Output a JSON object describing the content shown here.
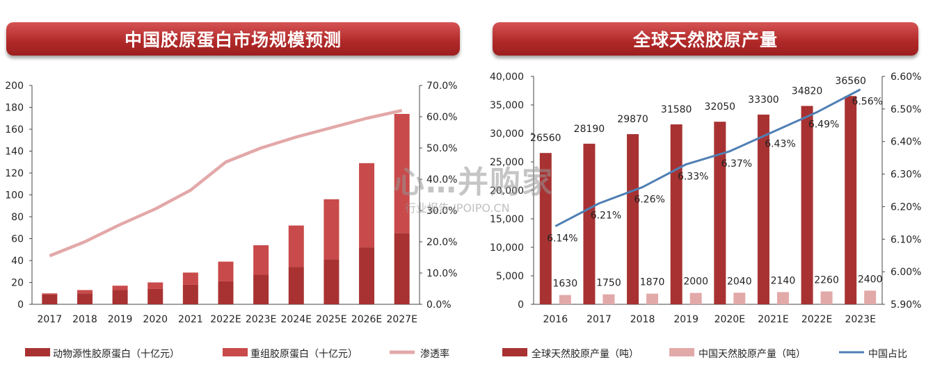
{
  "left": {
    "title": "中国胶原蛋白市场规模预测",
    "chart_data": {
      "type": "bar",
      "stacked": true,
      "categories": [
        "2017",
        "2018",
        "2019",
        "2020",
        "2021",
        "2022E",
        "2023E",
        "2024E",
        "2025E",
        "2026E",
        "2027E"
      ],
      "series": [
        {
          "name": "动物源性胶原蛋白（十亿元）",
          "type": "bar",
          "axis": "left",
          "color": "#a83232",
          "values": [
            9,
            10,
            13,
            14,
            18,
            21,
            27,
            34,
            41,
            52,
            65
          ]
        },
        {
          "name": "重组胶原蛋白（十亿元）",
          "type": "bar",
          "axis": "left",
          "color": "#c94a4a",
          "values": [
            1,
            3,
            4,
            6,
            11,
            18,
            27,
            38,
            55,
            77,
            109
          ]
        },
        {
          "name": "渗透率",
          "type": "line",
          "axis": "right",
          "color": "#e3a8a8",
          "values": [
            15.5,
            20,
            25.5,
            30.5,
            36.5,
            45.5,
            50,
            53.5,
            56.5,
            59.5,
            62
          ]
        }
      ],
      "y_left": {
        "min": 0,
        "max": 200,
        "ticks": [
          "0",
          "20",
          "40",
          "60",
          "80",
          "100",
          "120",
          "140",
          "160",
          "180",
          "200"
        ]
      },
      "y_right": {
        "min": 0,
        "max": 70,
        "ticks": [
          "0.0%",
          "10.0%",
          "20.0%",
          "30.0%",
          "40.0%",
          "50.0%",
          "60.0%",
          "70.0%"
        ]
      },
      "grid": false,
      "legend": "bottom"
    }
  },
  "right": {
    "title": "全球天然胶原产量",
    "chart_data": {
      "type": "bar",
      "categories": [
        "2016",
        "2017",
        "2018",
        "2019",
        "2020E",
        "2021E",
        "2022E",
        "2023E"
      ],
      "series": [
        {
          "name": "全球天然胶原产量（吨）",
          "type": "bar",
          "axis": "left",
          "color": "#a83232",
          "values": [
            26560,
            28190,
            29870,
            31580,
            32050,
            33300,
            34820,
            36560
          ],
          "labels": [
            "26560",
            "28190",
            "29870",
            "31580",
            "32050",
            "33300",
            "34820",
            "36560"
          ]
        },
        {
          "name": "中国天然胶原产量（吨）",
          "type": "bar",
          "axis": "left",
          "color": "#e2a9a9",
          "values": [
            1630,
            1750,
            1870,
            2000,
            2040,
            2140,
            2260,
            2400
          ],
          "labels": [
            "1630",
            "1750",
            "1870",
            "2000",
            "2040",
            "2140",
            "2260",
            "2400"
          ]
        },
        {
          "name": "中国占比",
          "type": "line",
          "axis": "right",
          "color": "#4f7fb4",
          "values": [
            6.14,
            6.21,
            6.26,
            6.33,
            6.37,
            6.43,
            6.49,
            6.56
          ],
          "labels": [
            "6.14%",
            "6.21%",
            "6.26%",
            "6.33%",
            "6.37%",
            "6.43%",
            "6.49%",
            "6.56%"
          ]
        }
      ],
      "y_left": {
        "min": 0,
        "max": 40000,
        "ticks": [
          "0",
          "5,000",
          "10,000",
          "15,000",
          "20,000",
          "25,000",
          "30,000",
          "35,000",
          "40,000"
        ]
      },
      "y_right": {
        "min": 5.9,
        "max": 6.6,
        "ticks": [
          "5.90%",
          "6.00%",
          "6.10%",
          "6.20%",
          "6.30%",
          "6.40%",
          "6.50%",
          "6.60%"
        ]
      },
      "grid": false,
      "legend": "bottom"
    }
  },
  "watermark": {
    "logo": "心…并购家",
    "url": "行业报告 IPOIPO.CN"
  }
}
